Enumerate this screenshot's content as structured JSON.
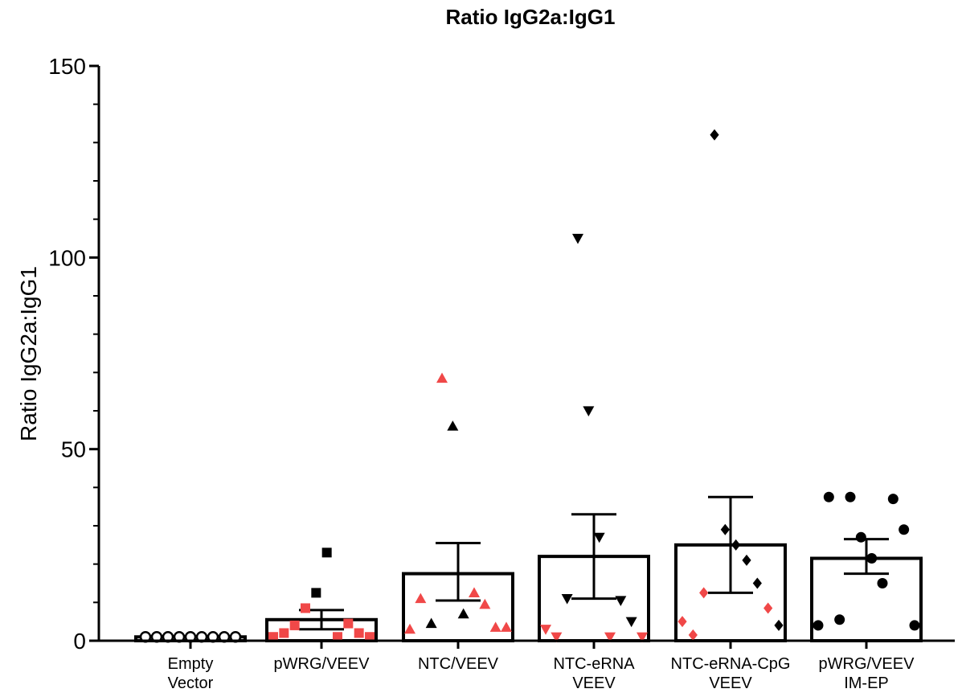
{
  "chart_data": {
    "type": "bar",
    "title": "Ratio IgG2a:IgG1",
    "xlabel": "",
    "ylabel": "Ratio IgG2a:IgG1",
    "ylim": [
      0,
      150
    ],
    "yticks": [
      "0",
      "50",
      "100",
      "150"
    ],
    "grid": false,
    "legend": "none",
    "colors": {
      "black": "#000000",
      "red": "#f04848",
      "bar_fill": "#ffffff"
    },
    "categories": [
      {
        "lines": [
          "Empty",
          "Vector"
        ]
      },
      {
        "lines": [
          "pWRG/VEEV"
        ]
      },
      {
        "lines": [
          "NTC/VEEV"
        ]
      },
      {
        "lines": [
          "NTC-eRNA",
          "VEEV"
        ]
      },
      {
        "lines": [
          "NTC-eRNA-CpG",
          "VEEV"
        ]
      },
      {
        "lines": [
          "pWRG/VEEV",
          "IM-EP"
        ]
      }
    ],
    "groups": [
      {
        "category": "Empty Vector",
        "mean": 1.0,
        "sem_low": 1.0,
        "sem_high": 1.0,
        "marker": "circle-open",
        "points": [
          {
            "y": 1.0,
            "color": "black"
          },
          {
            "y": 1.0,
            "color": "black"
          },
          {
            "y": 1.0,
            "color": "black"
          },
          {
            "y": 1.0,
            "color": "black"
          },
          {
            "y": 1.0,
            "color": "black"
          },
          {
            "y": 1.0,
            "color": "black"
          },
          {
            "y": 1.0,
            "color": "black"
          },
          {
            "y": 1.0,
            "color": "black"
          },
          {
            "y": 1.0,
            "color": "black"
          }
        ]
      },
      {
        "category": "pWRG/VEEV",
        "mean": 5.5,
        "sem_low": 3.0,
        "sem_high": 8.0,
        "marker": "square",
        "points": [
          {
            "y": 1.0,
            "color": "red"
          },
          {
            "y": 2.0,
            "color": "red"
          },
          {
            "y": 4.0,
            "color": "red"
          },
          {
            "y": 8.5,
            "color": "red"
          },
          {
            "y": 12.5,
            "color": "black"
          },
          {
            "y": 23.0,
            "color": "black"
          },
          {
            "y": 1.0,
            "color": "red"
          },
          {
            "y": 4.5,
            "color": "red"
          },
          {
            "y": 2.0,
            "color": "red"
          },
          {
            "y": 1.0,
            "color": "red"
          }
        ]
      },
      {
        "category": "NTC/VEEV",
        "mean": 17.5,
        "sem_low": 10.5,
        "sem_high": 25.5,
        "marker": "triangle-up",
        "points": [
          {
            "y": 3.0,
            "color": "red"
          },
          {
            "y": 11.0,
            "color": "red"
          },
          {
            "y": 4.5,
            "color": "black"
          },
          {
            "y": 68.5,
            "color": "red"
          },
          {
            "y": 56.0,
            "color": "black"
          },
          {
            "y": 7.0,
            "color": "black"
          },
          {
            "y": 12.5,
            "color": "red"
          },
          {
            "y": 9.5,
            "color": "red"
          },
          {
            "y": 3.5,
            "color": "red"
          },
          {
            "y": 3.5,
            "color": "red"
          }
        ]
      },
      {
        "category": "NTC-eRNA VEEV",
        "mean": 22.0,
        "sem_low": 11.0,
        "sem_high": 33.0,
        "marker": "triangle-down",
        "points": [
          {
            "y": 3.0,
            "color": "red"
          },
          {
            "y": 1.0,
            "color": "red"
          },
          {
            "y": 11.0,
            "color": "black"
          },
          {
            "y": 105.0,
            "color": "black"
          },
          {
            "y": 60.0,
            "color": "black"
          },
          {
            "y": 27.0,
            "color": "black"
          },
          {
            "y": 1.0,
            "color": "red"
          },
          {
            "y": 10.5,
            "color": "black"
          },
          {
            "y": 5.0,
            "color": "black"
          },
          {
            "y": 1.0,
            "color": "red"
          }
        ]
      },
      {
        "category": "NTC-eRNA-CpG VEEV",
        "mean": 25.0,
        "sem_low": 12.5,
        "sem_high": 37.5,
        "marker": "diamond",
        "points": [
          {
            "y": 5.0,
            "color": "red"
          },
          {
            "y": 1.5,
            "color": "red"
          },
          {
            "y": 12.5,
            "color": "red"
          },
          {
            "y": 132.0,
            "color": "black"
          },
          {
            "y": 29.0,
            "color": "black"
          },
          {
            "y": 25.0,
            "color": "black"
          },
          {
            "y": 21.0,
            "color": "black"
          },
          {
            "y": 15.0,
            "color": "black"
          },
          {
            "y": 8.5,
            "color": "red"
          },
          {
            "y": 4.0,
            "color": "black"
          }
        ]
      },
      {
        "category": "pWRG/VEEV IM-EP",
        "mean": 21.5,
        "sem_low": 17.5,
        "sem_high": 26.5,
        "marker": "circle",
        "points": [
          {
            "y": 4.0,
            "color": "black"
          },
          {
            "y": 37.5,
            "color": "black"
          },
          {
            "y": 5.5,
            "color": "black"
          },
          {
            "y": 37.5,
            "color": "black"
          },
          {
            "y": 27.0,
            "color": "black"
          },
          {
            "y": 21.5,
            "color": "black"
          },
          {
            "y": 15.0,
            "color": "black"
          },
          {
            "y": 37.0,
            "color": "black"
          },
          {
            "y": 29.0,
            "color": "black"
          },
          {
            "y": 4.0,
            "color": "black"
          }
        ]
      }
    ]
  }
}
